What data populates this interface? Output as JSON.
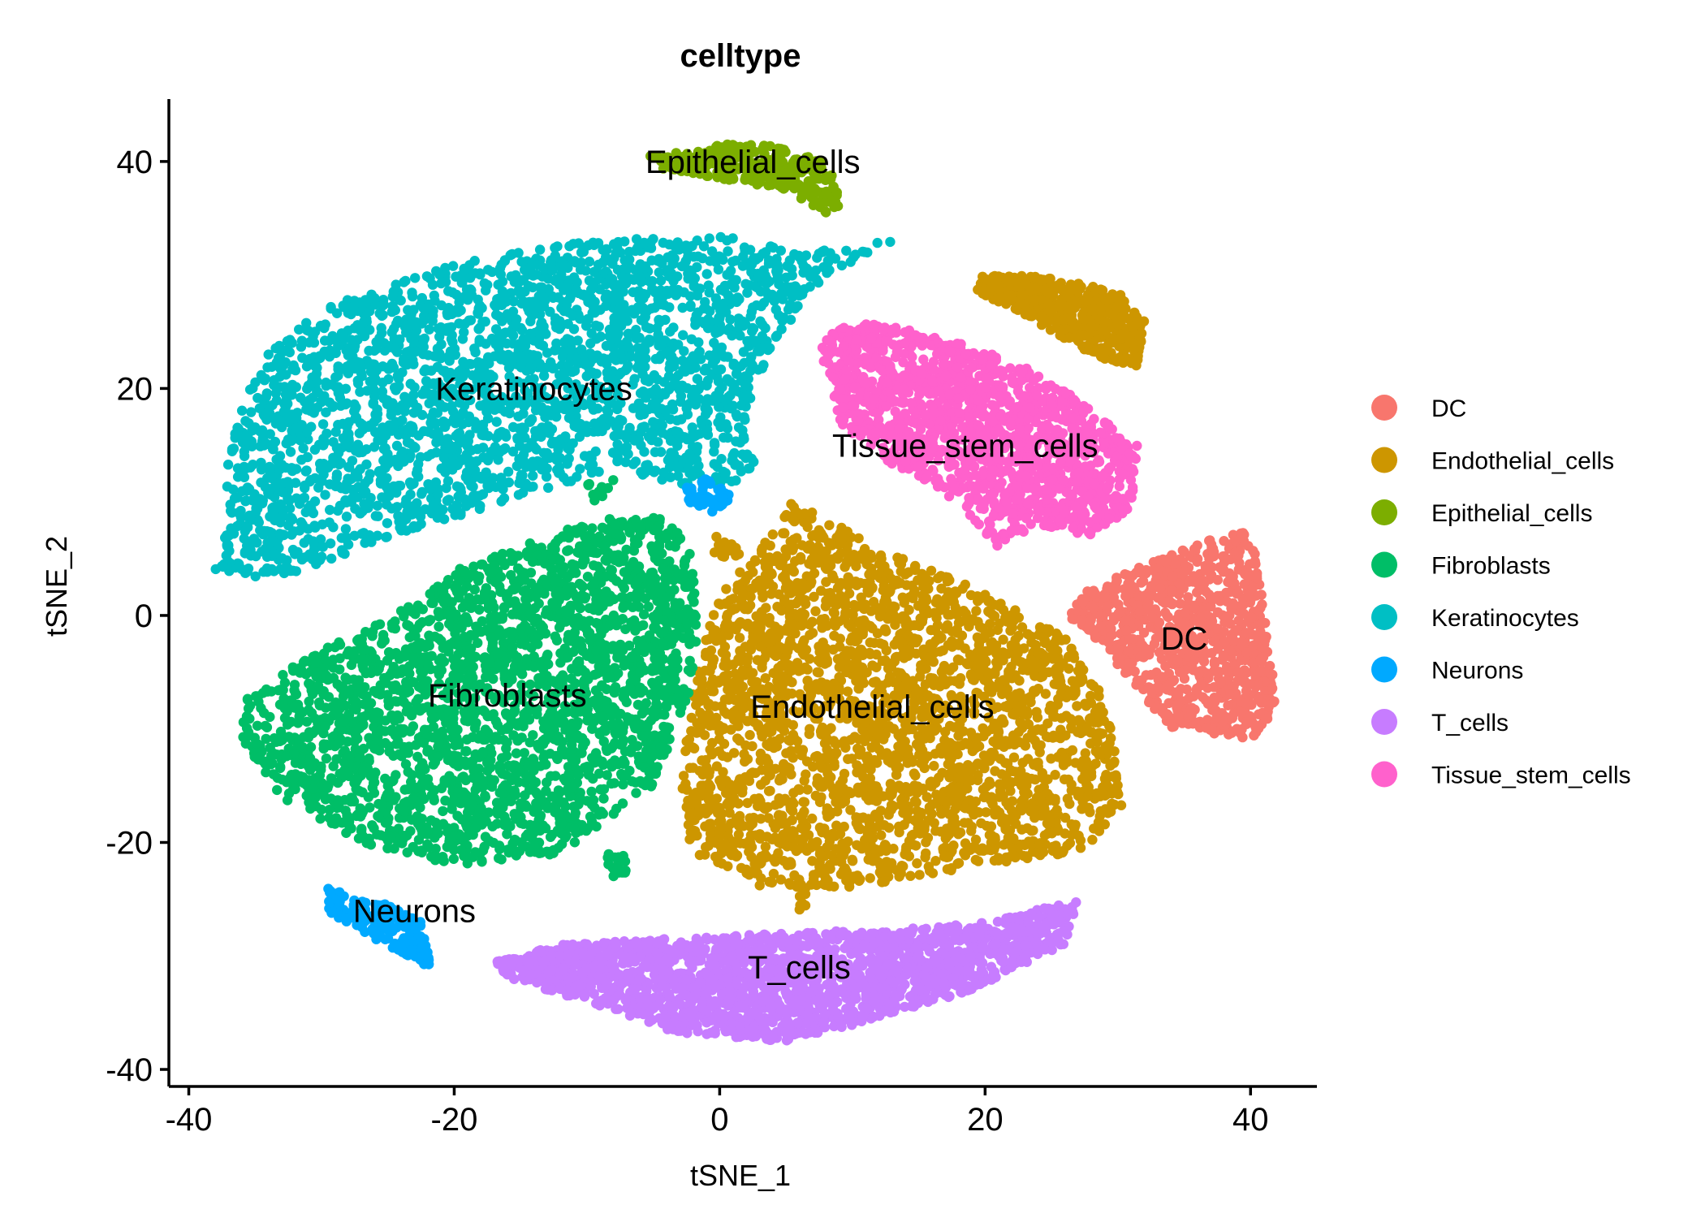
{
  "chart_data": {
    "type": "scatter",
    "title": "celltype",
    "xlabel": "tSNE_1",
    "ylabel": "tSNE_2",
    "xlim": [
      -41.5,
      45
    ],
    "ylim": [
      -41.5,
      45.5
    ],
    "xticks": [
      -40,
      -20,
      0,
      20,
      40
    ],
    "yticks": [
      -40,
      -20,
      0,
      20,
      40
    ],
    "grid": false,
    "legend_position": "right",
    "series": [
      {
        "name": "DC",
        "color": "#F8766D",
        "cluster_label": "DC",
        "label_at": [
          35,
          -2
        ],
        "regions": [
          {
            "polygon": [
              [
                26.5,
                1.5
              ],
              [
                33,
                5
              ],
              [
                40,
                8
              ],
              [
                41,
                1
              ],
              [
                42,
                -8
              ],
              [
                40,
                -11
              ],
              [
                34,
                -10
              ],
              [
                29,
                -3
              ],
              [
                26.5,
                -0.5
              ]
            ],
            "density": 900
          },
          {
            "polygon": [
              [
                28,
                23
              ],
              [
                29,
                25
              ],
              [
                28.5,
                27
              ],
              [
                27.5,
                25.5
              ]
            ],
            "density": 20
          }
        ]
      },
      {
        "name": "Endothelial_cells",
        "color": "#CD9600",
        "cluster_label": "Endothelial_cells",
        "label_at": [
          11.5,
          -8
        ],
        "regions": [
          {
            "polygon": [
              [
                5.5,
                10
              ],
              [
                12,
                6
              ],
              [
                20,
                2
              ],
              [
                26,
                -2
              ],
              [
                29,
                -7
              ],
              [
                30.5,
                -17
              ],
              [
                27,
                -21
              ],
              [
                20,
                -22
              ],
              [
                10,
                -24
              ],
              [
                3,
                -24
              ],
              [
                -2,
                -21
              ],
              [
                -3,
                -16
              ],
              [
                -2,
                -6
              ],
              [
                0,
                2
              ],
              [
                3,
                6
              ]
            ],
            "density": 2600
          },
          {
            "polygon": [
              [
                19,
                30
              ],
              [
                24,
                30
              ],
              [
                30,
                28.5
              ],
              [
                32,
                26
              ],
              [
                31.5,
                22
              ],
              [
                29,
                22.5
              ],
              [
                25,
                25
              ],
              [
                23,
                26.5
              ],
              [
                19.5,
                28.5
              ]
            ],
            "density": 550
          },
          {
            "polygon": [
              [
                -0.5,
                7
              ],
              [
                1.5,
                7
              ],
              [
                1.5,
                5
              ],
              [
                -0.5,
                5
              ]
            ],
            "density": 20
          },
          {
            "polygon": [
              [
                5.8,
                -23.5
              ],
              [
                6.5,
                -23.5
              ],
              [
                6.5,
                -26
              ],
              [
                5.8,
                -26
              ]
            ],
            "density": 15
          }
        ]
      },
      {
        "name": "Epithelial_cells",
        "color": "#7CAE00",
        "cluster_label": "Epithelial_cells",
        "label_at": [
          2.5,
          40
        ],
        "regions": [
          {
            "polygon": [
              [
                -5.5,
                40.5
              ],
              [
                -1,
                41.5
              ],
              [
                4,
                41.5
              ],
              [
                8,
                40
              ],
              [
                9.5,
                36
              ],
              [
                8,
                35.5
              ],
              [
                5,
                37.5
              ],
              [
                0,
                38.5
              ],
              [
                -5,
                39.5
              ]
            ],
            "density": 280
          }
        ]
      },
      {
        "name": "Fibroblasts",
        "color": "#00BE67",
        "cluster_label": "Fibroblasts",
        "label_at": [
          -16,
          -7
        ],
        "regions": [
          {
            "polygon": [
              [
                -14,
                6.5
              ],
              [
                -8,
                9
              ],
              [
                -3,
                8.5
              ],
              [
                -1.5,
                3
              ],
              [
                -2,
                -6
              ],
              [
                -5,
                -15
              ],
              [
                -12,
                -21
              ],
              [
                -20,
                -22
              ],
              [
                -27,
                -20
              ],
              [
                -33,
                -16
              ],
              [
                -36,
                -11
              ],
              [
                -36,
                -7
              ],
              [
                -30,
                -3
              ],
              [
                -23,
                1
              ],
              [
                -20,
                4
              ]
            ],
            "density": 2500
          },
          {
            "polygon": [
              [
                -8.5,
                -21
              ],
              [
                -7,
                -21
              ],
              [
                -7,
                -23
              ],
              [
                -8.5,
                -23
              ]
            ],
            "density": 20
          },
          {
            "polygon": [
              [
                -10,
                12
              ],
              [
                -8,
                12
              ],
              [
                -8,
                10
              ],
              [
                -10,
                10
              ]
            ],
            "density": 12
          }
        ]
      },
      {
        "name": "Keratinocytes",
        "color": "#00BFC4",
        "cluster_label": "Keratinocytes",
        "label_at": [
          -14,
          20
        ],
        "regions": [
          {
            "polygon": [
              [
                -37.5,
                7
              ],
              [
                -37,
                15
              ],
              [
                -35,
                22
              ],
              [
                -30,
                27
              ],
              [
                -20,
                31
              ],
              [
                -10,
                33
              ],
              [
                0,
                33.5
              ],
              [
                6,
                32
              ],
              [
                13,
                33
              ],
              [
                8,
                30
              ],
              [
                4,
                24
              ],
              [
                2,
                18
              ],
              [
                3,
                12
              ],
              [
                -2,
                11
              ],
              [
                -8,
                13
              ],
              [
                -16,
                10
              ],
              [
                -22,
                8
              ],
              [
                -29,
                5
              ],
              [
                -34,
                3
              ],
              [
                -38,
                4
              ]
            ],
            "density": 2600
          }
        ]
      },
      {
        "name": "Neurons",
        "color": "#00A9FF",
        "cluster_label": "Neurons",
        "label_at": [
          -23,
          -26
        ],
        "regions": [
          {
            "polygon": [
              [
                -29.5,
                -24
              ],
              [
                -25,
                -25.5
              ],
              [
                -22.5,
                -27
              ],
              [
                -21.5,
                -31.5
              ],
              [
                -23.5,
                -30
              ],
              [
                -27,
                -28
              ],
              [
                -29.5,
                -26
              ]
            ],
            "density": 170
          },
          {
            "polygon": [
              [
                -2.5,
                12
              ],
              [
                0,
                12
              ],
              [
                1,
                10
              ],
              [
                -0.5,
                9
              ],
              [
                -2.5,
                10
              ]
            ],
            "density": 50
          }
        ]
      },
      {
        "name": "T_cells",
        "color": "#C77CFF",
        "cluster_label": "T_cells",
        "label_at": [
          6,
          -31
        ],
        "regions": [
          {
            "polygon": [
              [
                -17,
                -30.5
              ],
              [
                -12,
                -29
              ],
              [
                -4,
                -28.5
              ],
              [
                5,
                -28
              ],
              [
                14,
                -27.5
              ],
              [
                20,
                -27
              ],
              [
                27,
                -25
              ],
              [
                26,
                -29
              ],
              [
                19,
                -33
              ],
              [
                12,
                -35.5
              ],
              [
                5,
                -37.5
              ],
              [
                -3,
                -37
              ],
              [
                -10,
                -34
              ],
              [
                -16,
                -32
              ]
            ],
            "density": 1900
          }
        ]
      },
      {
        "name": "Tissue_stem_cells",
        "color": "#FF61CC",
        "cluster_label": "Tissue_stem_cells",
        "label_at": [
          18.5,
          15
        ],
        "regions": [
          {
            "polygon": [
              [
                7.5,
                25
              ],
              [
                12,
                26
              ],
              [
                18,
                24
              ],
              [
                23,
                22
              ],
              [
                27,
                19
              ],
              [
                31.5,
                15
              ],
              [
                31,
                9
              ],
              [
                28,
                7
              ],
              [
                24,
                8
              ],
              [
                21,
                6
              ],
              [
                18,
                10
              ],
              [
                15,
                12
              ],
              [
                12,
                14
              ],
              [
                9,
                17
              ],
              [
                8,
                21
              ]
            ],
            "density": 1500
          }
        ]
      }
    ]
  }
}
